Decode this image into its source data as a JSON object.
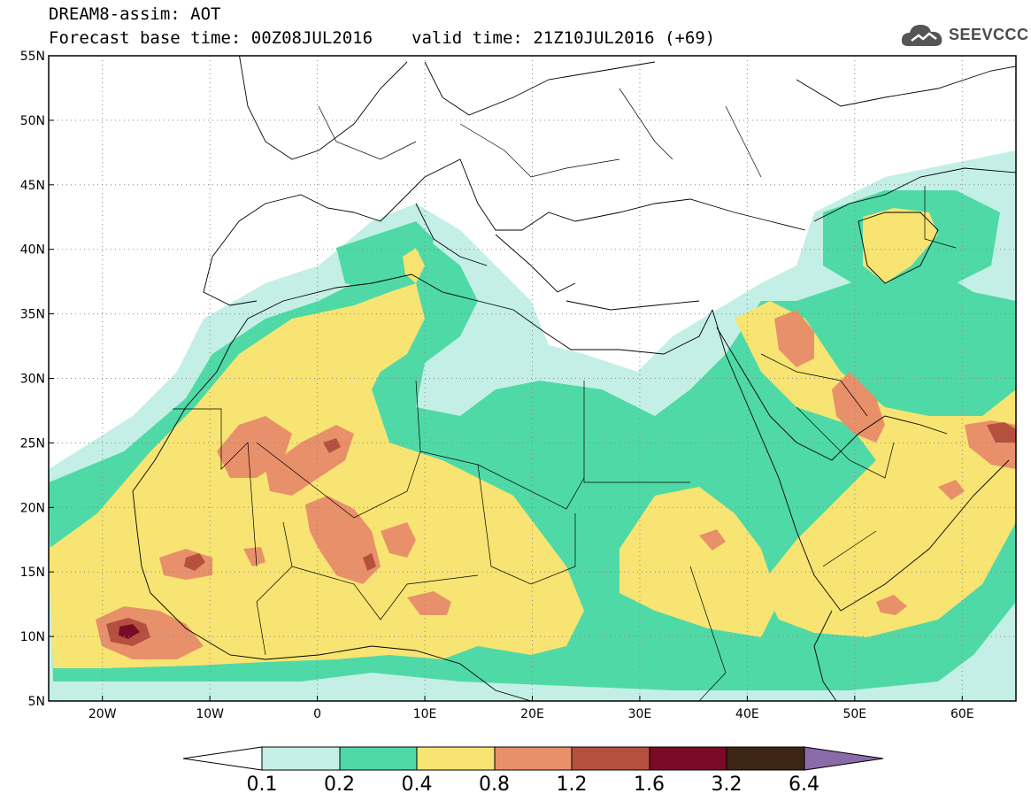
{
  "header": {
    "title": "DREAM8-assim: AOT",
    "base_time": "Forecast base time: 00Z08JUL2016",
    "valid_time": "valid time: 21Z10JUL2016 (+69)"
  },
  "logo": {
    "text": "SEEVCCC",
    "icon": "cloud-icon"
  },
  "map": {
    "lon_range": [
      -25,
      65
    ],
    "lat_range": [
      5,
      55
    ],
    "lat_ticks": [
      {
        "v": 55,
        "label": "55N"
      },
      {
        "v": 50,
        "label": "50N"
      },
      {
        "v": 45,
        "label": "45N"
      },
      {
        "v": 40,
        "label": "40N"
      },
      {
        "v": 35,
        "label": "35N"
      },
      {
        "v": 30,
        "label": "30N"
      },
      {
        "v": 25,
        "label": "25N"
      },
      {
        "v": 20,
        "label": "20N"
      },
      {
        "v": 15,
        "label": "15N"
      },
      {
        "v": 10,
        "label": "10N"
      },
      {
        "v": 5,
        "label": "5N"
      }
    ],
    "lon_ticks": [
      {
        "v": -20,
        "label": "20W"
      },
      {
        "v": -10,
        "label": "10W"
      },
      {
        "v": 0,
        "label": "0"
      },
      {
        "v": 10,
        "label": "10E"
      },
      {
        "v": 20,
        "label": "20E"
      },
      {
        "v": 30,
        "label": "30E"
      },
      {
        "v": 40,
        "label": "40E"
      },
      {
        "v": 50,
        "label": "50E"
      },
      {
        "v": 60,
        "label": "60E"
      }
    ],
    "grid": "dotted"
  },
  "colorbar": {
    "levels": [
      "0.1",
      "0.2",
      "0.4",
      "0.8",
      "1.2",
      "1.6",
      "3.2",
      "6.4"
    ],
    "colors": [
      "#ffffff",
      "#c4efe6",
      "#4fd9a6",
      "#f7e472",
      "#e8906a",
      "#b5503f",
      "#7b0a26",
      "#3d2514",
      "#8a6aa8"
    ]
  },
  "chart_data": {
    "type": "heatmap",
    "variable": "AOT",
    "lon_range": [
      -25,
      65
    ],
    "lat_range": [
      5,
      55
    ],
    "bins": [
      {
        "min": 0.1,
        "max": 0.2,
        "color": "#c4efe6"
      },
      {
        "min": 0.2,
        "max": 0.4,
        "color": "#4fd9a6"
      },
      {
        "min": 0.4,
        "max": 0.8,
        "color": "#f7e472"
      },
      {
        "min": 0.8,
        "max": 1.2,
        "color": "#e8906a"
      },
      {
        "min": 1.2,
        "max": 1.6,
        "color": "#b5503f"
      },
      {
        "min": 1.6,
        "max": 3.2,
        "color": "#7b0a26"
      },
      {
        "min": 3.2,
        "max": 6.4,
        "color": "#3d2514"
      }
    ],
    "plumes": [
      {
        "lon": [
          -24,
          10
        ],
        "lat": [
          6,
          30
        ],
        "max_level": "1.6-3.2"
      },
      {
        "lon": [
          -5,
          20
        ],
        "lat": [
          15,
          27
        ],
        "max_level": "1.2-1.6"
      },
      {
        "lon": [
          38,
          65
        ],
        "lat": [
          10,
          36
        ],
        "max_level": "1.2-1.6"
      },
      {
        "lon": [
          48,
          58
        ],
        "lat": [
          37,
          43
        ],
        "max_level": "0.4-0.8"
      }
    ]
  }
}
